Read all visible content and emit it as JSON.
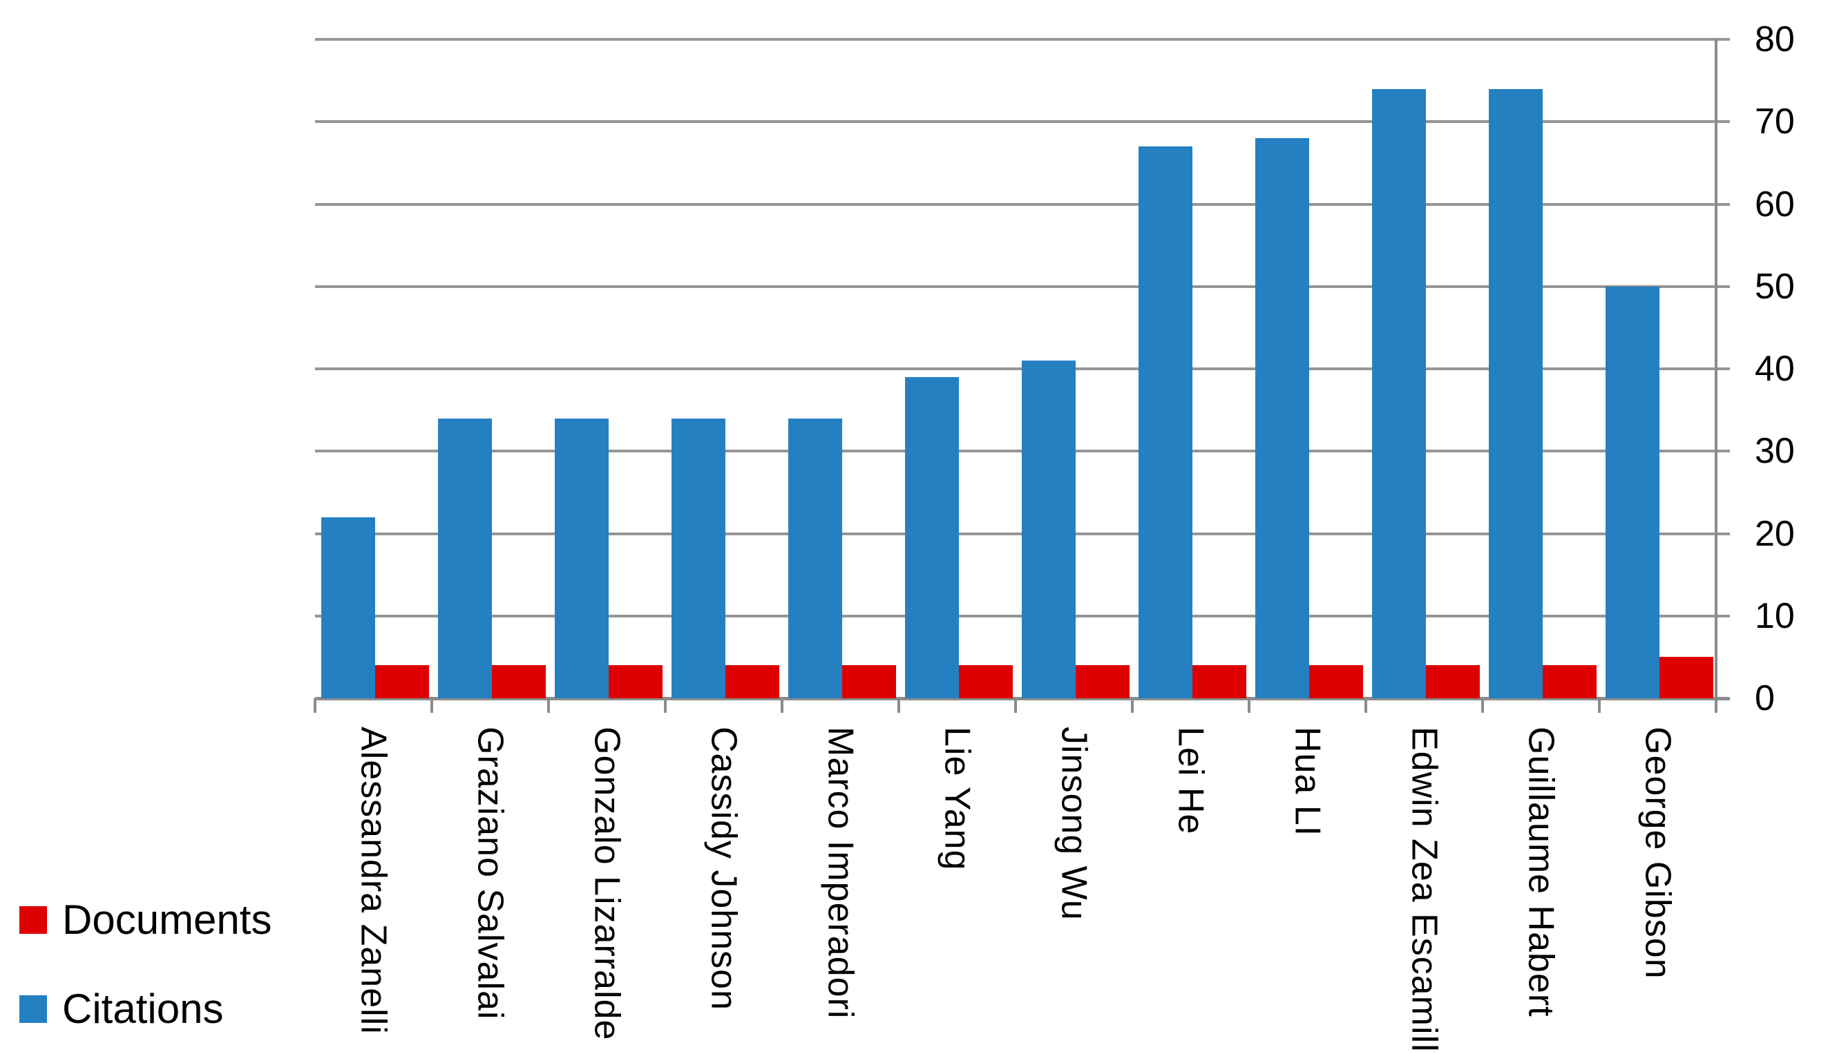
{
  "chart_data": {
    "type": "bar",
    "title": "",
    "categories": [
      "Alessandra Zanelli",
      "Graziano Salvalai",
      "Gonzalo Lizarralde",
      "Cassidy Johnson",
      "Marco Imperadori",
      "Lie Yang",
      "Jinsong Wu",
      "Lei He",
      "Hua LI",
      "Edwin Zea Escamilla",
      "Guillaume Habert",
      "George Gibson"
    ],
    "series": [
      {
        "name": "Documents",
        "color": "#DE0000",
        "values": [
          4,
          4,
          4,
          4,
          4,
          4,
          4,
          4,
          4,
          4,
          4,
          5
        ]
      },
      {
        "name": "Citations",
        "color": "#2580C2",
        "values": [
          22,
          34,
          34,
          34,
          34,
          39,
          41,
          67,
          68,
          74,
          74,
          50
        ]
      }
    ],
    "group_bar_order": [
      "Citations",
      "Documents"
    ],
    "xlabel": "",
    "ylabel": "",
    "ylim": [
      0,
      80
    ],
    "y_ticks": [
      80,
      70,
      60,
      50,
      40,
      30,
      20,
      10,
      0
    ],
    "grid": "horizontal-only",
    "legend_position": "bottom-left",
    "x_label_rotation_deg": 90
  },
  "legend": {
    "items": [
      {
        "label": "Documents",
        "color": "#DE0000"
      },
      {
        "label": "Citations",
        "color": "#2580C2"
      }
    ]
  },
  "colors": {
    "background": "#FFFFFF",
    "gridline": "#959595",
    "axis": "#8B8B8B",
    "text": "#000000",
    "citations_blue": "#2580C2",
    "documents_red": "#DE0000"
  }
}
